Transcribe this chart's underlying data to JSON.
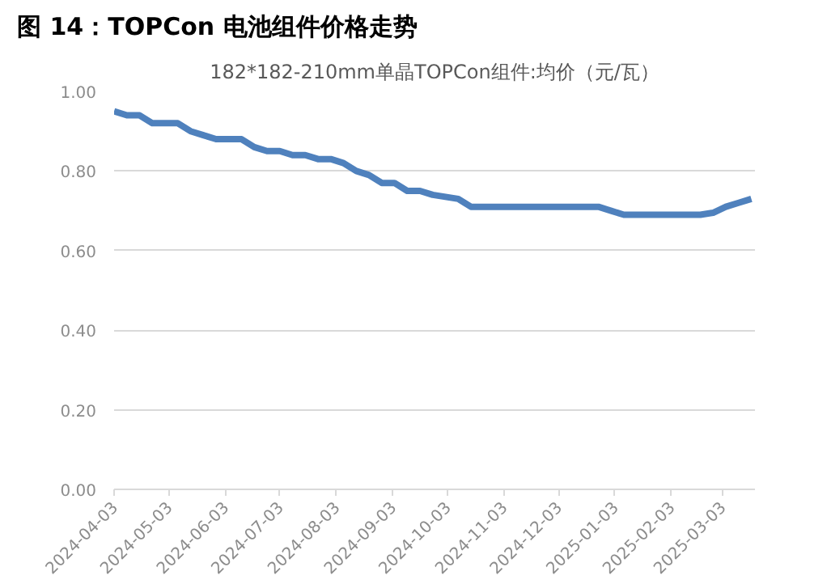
{
  "chart_data": {
    "type": "line",
    "title": "图 14：TOPCon 电池组件价格走势",
    "subtitle": "182*182-210mm单晶TOPCon组件:均价（元/瓦）",
    "x": [
      "2024-04-03",
      "2024-04-10",
      "2024-04-17",
      "2024-04-24",
      "2024-05-01",
      "2024-05-08",
      "2024-05-15",
      "2024-05-22",
      "2024-05-29",
      "2024-06-05",
      "2024-06-12",
      "2024-06-19",
      "2024-06-26",
      "2024-07-03",
      "2024-07-10",
      "2024-07-17",
      "2024-07-24",
      "2024-07-31",
      "2024-08-07",
      "2024-08-14",
      "2024-08-21",
      "2024-08-28",
      "2024-09-04",
      "2024-09-11",
      "2024-09-18",
      "2024-09-25",
      "2024-10-02",
      "2024-10-09",
      "2024-10-16",
      "2024-10-23",
      "2024-10-30",
      "2024-11-06",
      "2024-11-13",
      "2024-11-20",
      "2024-11-27",
      "2024-12-04",
      "2024-12-11",
      "2024-12-18",
      "2024-12-25",
      "2025-01-01",
      "2025-01-08",
      "2025-01-15",
      "2025-01-22",
      "2025-01-29",
      "2025-02-05",
      "2025-02-12",
      "2025-02-19",
      "2025-02-26",
      "2025-03-05",
      "2025-03-12",
      "2025-03-19"
    ],
    "series": [
      {
        "color": "#4f81bd",
        "values": [
          0.95,
          0.94,
          0.94,
          0.92,
          0.92,
          0.92,
          0.9,
          0.89,
          0.88,
          0.88,
          0.88,
          0.86,
          0.85,
          0.85,
          0.84,
          0.84,
          0.83,
          0.83,
          0.82,
          0.8,
          0.79,
          0.77,
          0.77,
          0.75,
          0.75,
          0.74,
          0.735,
          0.73,
          0.71,
          0.71,
          0.71,
          0.71,
          0.71,
          0.71,
          0.71,
          0.71,
          0.71,
          0.71,
          0.71,
          0.7,
          0.69,
          0.69,
          0.69,
          0.69,
          0.69,
          0.69,
          0.69,
          0.695,
          0.71,
          0.72,
          0.73
        ]
      }
    ],
    "xlim": [
      "2024-04-03",
      "2025-03-21"
    ],
    "xticks": [
      "2024-04-03",
      "2024-05-03",
      "2024-06-03",
      "2024-07-03",
      "2024-08-03",
      "2024-09-03",
      "2024-10-03",
      "2024-11-03",
      "2024-12-03",
      "2025-01-03",
      "2025-02-03",
      "2025-03-03"
    ],
    "ylim": [
      0,
      1.0
    ],
    "yticks": [
      {
        "value": 0,
        "label": "0.00"
      },
      {
        "value": 0.2,
        "label": "0.20"
      },
      {
        "value": 0.4,
        "label": "0.40"
      },
      {
        "value": 0.6,
        "label": "0.60"
      },
      {
        "value": 0.8,
        "label": "0.80"
      },
      {
        "value": 1.0,
        "label": "1.00"
      }
    ],
    "grid": "y",
    "marker": "none",
    "line_style": "solid"
  }
}
